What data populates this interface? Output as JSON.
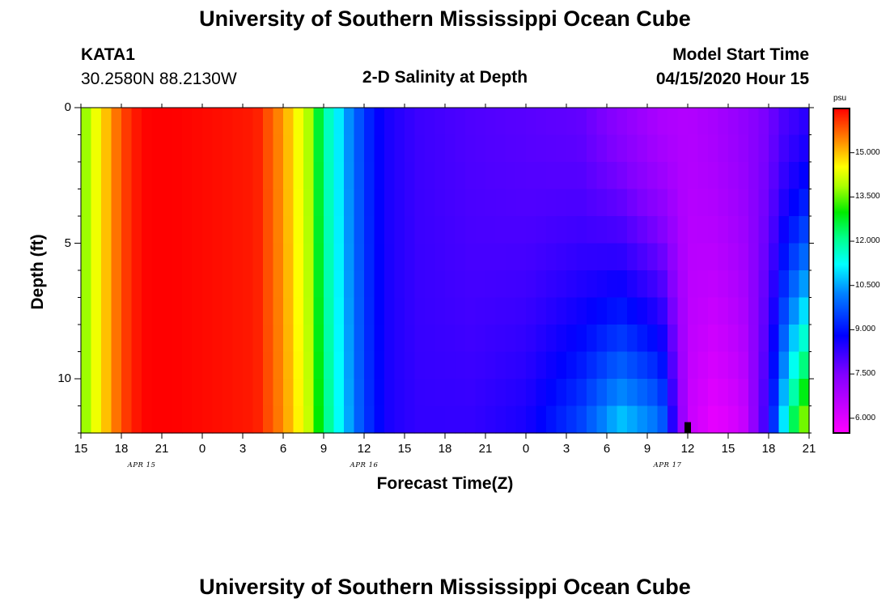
{
  "header": {
    "title_top": "University of Southern Mississippi Ocean Cube",
    "title_bottom": "University of Southern Mississippi Ocean Cube",
    "station_id": "KATA1",
    "station_coords": "30.2580N 88.2130W",
    "plot_title": "2-D Salinity at Depth",
    "model_start_label": "Model Start Time",
    "model_start_value": "04/15/2020 Hour 15"
  },
  "chart_data": {
    "type": "heatmap",
    "title": "2-D Salinity at Depth",
    "xlabel": "Forecast Time(Z)",
    "ylabel": "Depth (ft)",
    "x_start_hour": 15,
    "x_end_hour": 69,
    "x_ticks": [
      "15",
      "18",
      "21",
      "0",
      "3",
      "6",
      "9",
      "12",
      "15",
      "18",
      "21",
      "0",
      "3",
      "6",
      "9",
      "12",
      "15",
      "18",
      "21"
    ],
    "date_labels": [
      {
        "label": "APR 15",
        "hour": 19.5
      },
      {
        "label": "APR 16",
        "hour": 36
      },
      {
        "label": "APR 17",
        "hour": 58.5
      }
    ],
    "y_ticks": [
      "0",
      "5",
      "10"
    ],
    "y_tick_values": [
      0,
      5,
      10
    ],
    "ylim": [
      0,
      12
    ],
    "colorbar": {
      "unit": "psu",
      "ticks": [
        "15.000",
        "13.500",
        "12.000",
        "10.500",
        "9.000",
        "7.500",
        "6.000"
      ],
      "tick_values": [
        15.0,
        13.5,
        12.0,
        10.5,
        9.0,
        7.5,
        6.0
      ],
      "range": [
        5.5,
        16.5
      ]
    },
    "depth_levels": 12,
    "profile_hours": [
      15,
      16,
      17,
      18,
      19,
      20,
      22,
      28,
      30,
      32,
      33,
      34,
      35,
      36,
      37,
      38,
      40,
      44,
      48,
      52,
      55,
      58,
      60,
      62,
      64,
      66,
      67,
      68,
      69
    ],
    "profile_surface": [
      13.5,
      14.3,
      15.1,
      15.9,
      16.3,
      16.5,
      16.5,
      16.3,
      15.3,
      13.8,
      12.0,
      11.2,
      10.2,
      9.4,
      8.8,
      8.5,
      8.2,
      8.0,
      7.9,
      7.8,
      7.3,
      6.8,
      6.7,
      6.9,
      7.2,
      7.6,
      8.0,
      8.2,
      8.4
    ],
    "profile_bottom": [
      13.5,
      14.3,
      15.1,
      15.9,
      16.3,
      16.5,
      16.5,
      16.3,
      15.4,
      14.0,
      12.4,
      11.4,
      10.4,
      9.5,
      8.9,
      8.5,
      8.3,
      8.3,
      8.6,
      9.6,
      11.0,
      10.2,
      6.4,
      5.8,
      6.2,
      8.5,
      11.0,
      13.0,
      14.5
    ],
    "marker": {
      "hour": 60,
      "depth_from": 11.6,
      "depth_to": 12
    }
  }
}
